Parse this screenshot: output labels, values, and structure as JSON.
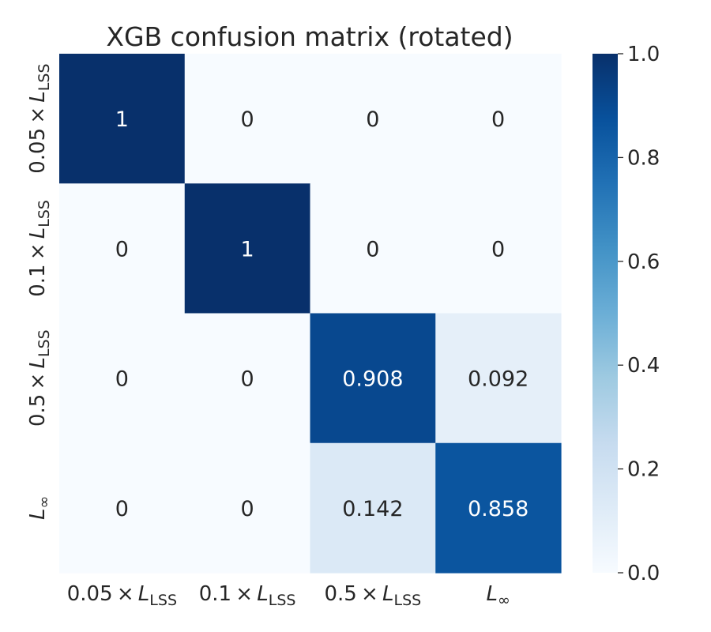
{
  "chart_data": {
    "type": "heatmap",
    "title": "XGB confusion matrix (rotated)",
    "x_categories": [
      {
        "prefix": "0.05",
        "times": "×",
        "symbol": "L",
        "subscript": "LSS"
      },
      {
        "prefix": "0.1",
        "times": "×",
        "symbol": "L",
        "subscript": "LSS"
      },
      {
        "prefix": "0.5",
        "times": "×",
        "symbol": "L",
        "subscript": "LSS"
      },
      {
        "prefix": "",
        "times": "",
        "symbol": "L",
        "subscript": "∞"
      }
    ],
    "y_categories": [
      {
        "prefix": "0.05",
        "times": "×",
        "symbol": "L",
        "subscript": "LSS"
      },
      {
        "prefix": "0.1",
        "times": "×",
        "symbol": "L",
        "subscript": "LSS"
      },
      {
        "prefix": "0.5",
        "times": "×",
        "symbol": "L",
        "subscript": "LSS"
      },
      {
        "prefix": "",
        "times": "",
        "symbol": "L",
        "subscript": "∞"
      }
    ],
    "values": [
      [
        1,
        0,
        0,
        0
      ],
      [
        0,
        1,
        0,
        0
      ],
      [
        0,
        0,
        0.908,
        0.092
      ],
      [
        0,
        0,
        0.142,
        0.858
      ]
    ],
    "cell_labels": [
      [
        "1",
        "0",
        "0",
        "0"
      ],
      [
        "0",
        "1",
        "0",
        "0"
      ],
      [
        "0",
        "0",
        "0.908",
        "0.092"
      ],
      [
        "0",
        "0",
        "0.142",
        "0.858"
      ]
    ],
    "colorbar": {
      "range": [
        0.0,
        1.0
      ],
      "ticks": [
        0.0,
        0.2,
        0.4,
        0.6,
        0.8,
        1.0
      ],
      "tick_labels": [
        "0.0",
        "0.2",
        "0.4",
        "0.6",
        "0.8",
        "1.0"
      ]
    },
    "colormap": "Blues",
    "colors": {
      "stops": [
        "#f7fbff",
        "#deebf7",
        "#c6dbef",
        "#9ecae1",
        "#6baed6",
        "#4292c6",
        "#2171b5",
        "#08519c",
        "#08306b"
      ],
      "text_dark": "#262626",
      "text_light": "#ffffff"
    },
    "grid": false
  }
}
